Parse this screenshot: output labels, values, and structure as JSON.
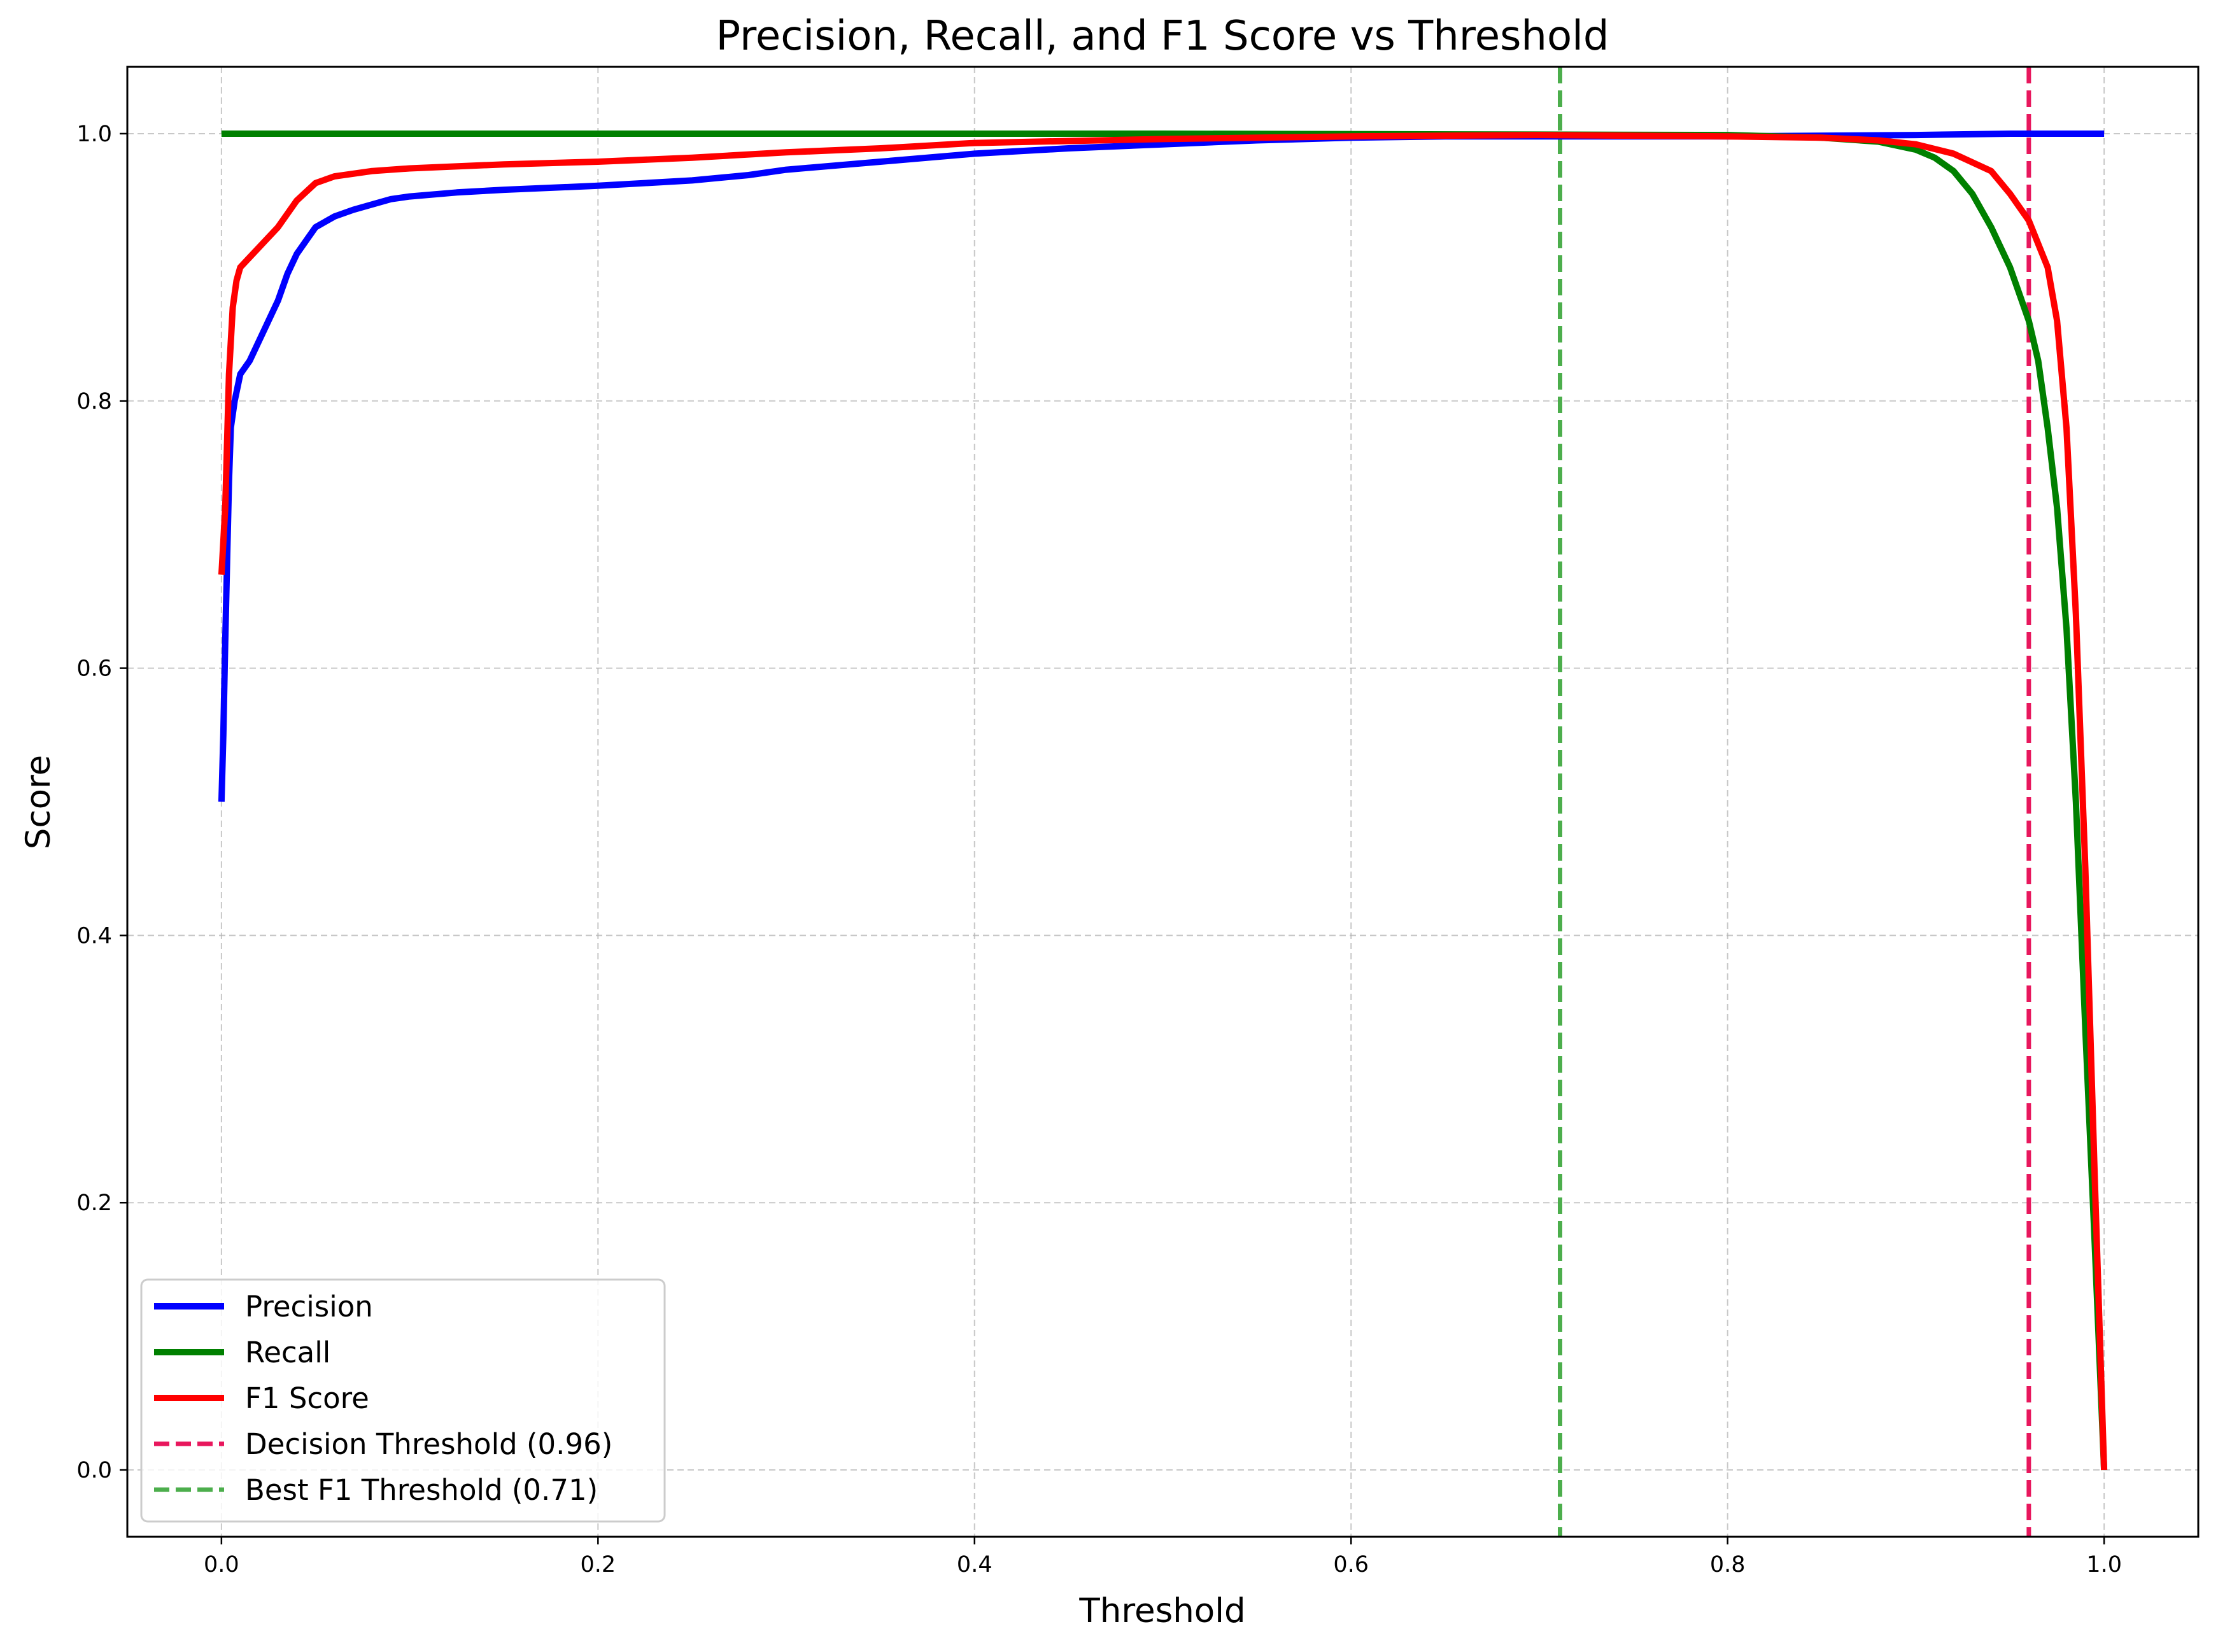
{
  "chart_data": {
    "type": "line",
    "title": "Precision, Recall, and F1 Score vs Threshold",
    "xlabel": "Threshold",
    "ylabel": "Score",
    "xlim": [
      -0.05,
      1.05
    ],
    "ylim": [
      -0.05,
      1.05
    ],
    "xticks": [
      "0.0",
      "0.2",
      "0.4",
      "0.6",
      "0.8",
      "1.0"
    ],
    "yticks": [
      "0.0",
      "0.2",
      "0.4",
      "0.6",
      "0.8",
      "1.0"
    ],
    "grid": true,
    "legend_position": "lower-left",
    "series": [
      {
        "name": "Precision",
        "color": "#0000ff",
        "style": "solid",
        "points": [
          [
            0.0,
            0.5
          ],
          [
            0.001,
            0.55
          ],
          [
            0.002,
            0.62
          ],
          [
            0.003,
            0.68
          ],
          [
            0.004,
            0.74
          ],
          [
            0.005,
            0.78
          ],
          [
            0.007,
            0.8
          ],
          [
            0.01,
            0.82
          ],
          [
            0.015,
            0.83
          ],
          [
            0.02,
            0.845
          ],
          [
            0.025,
            0.86
          ],
          [
            0.03,
            0.875
          ],
          [
            0.035,
            0.895
          ],
          [
            0.04,
            0.91
          ],
          [
            0.045,
            0.92
          ],
          [
            0.05,
            0.93
          ],
          [
            0.06,
            0.938
          ],
          [
            0.07,
            0.943
          ],
          [
            0.08,
            0.947
          ],
          [
            0.09,
            0.951
          ],
          [
            0.1,
            0.953
          ],
          [
            0.125,
            0.956
          ],
          [
            0.15,
            0.958
          ],
          [
            0.2,
            0.961
          ],
          [
            0.25,
            0.965
          ],
          [
            0.28,
            0.969
          ],
          [
            0.3,
            0.973
          ],
          [
            0.35,
            0.979
          ],
          [
            0.4,
            0.985
          ],
          [
            0.45,
            0.989
          ],
          [
            0.5,
            0.992
          ],
          [
            0.55,
            0.995
          ],
          [
            0.6,
            0.997
          ],
          [
            0.65,
            0.998
          ],
          [
            0.7,
            0.998
          ],
          [
            0.8,
            0.998
          ],
          [
            0.9,
            0.999
          ],
          [
            0.95,
            1.0
          ],
          [
            1.0,
            1.0
          ]
        ]
      },
      {
        "name": "Recall",
        "color": "#008000",
        "style": "solid",
        "points": [
          [
            0.0,
            1.0
          ],
          [
            0.5,
            1.0
          ],
          [
            0.8,
            0.999
          ],
          [
            0.85,
            0.997
          ],
          [
            0.88,
            0.994
          ],
          [
            0.9,
            0.988
          ],
          [
            0.91,
            0.982
          ],
          [
            0.92,
            0.972
          ],
          [
            0.93,
            0.955
          ],
          [
            0.94,
            0.93
          ],
          [
            0.95,
            0.9
          ],
          [
            0.96,
            0.86
          ],
          [
            0.965,
            0.83
          ],
          [
            0.97,
            0.78
          ],
          [
            0.975,
            0.72
          ],
          [
            0.98,
            0.63
          ],
          [
            0.985,
            0.5
          ],
          [
            0.99,
            0.33
          ],
          [
            0.995,
            0.17
          ],
          [
            1.0,
            0.0
          ]
        ]
      },
      {
        "name": "F1 Score",
        "color": "#ff0000",
        "style": "solid",
        "points": [
          [
            0.0,
            0.67
          ],
          [
            0.002,
            0.72
          ],
          [
            0.004,
            0.82
          ],
          [
            0.006,
            0.87
          ],
          [
            0.008,
            0.89
          ],
          [
            0.01,
            0.9
          ],
          [
            0.02,
            0.915
          ],
          [
            0.03,
            0.93
          ],
          [
            0.04,
            0.95
          ],
          [
            0.05,
            0.963
          ],
          [
            0.06,
            0.968
          ],
          [
            0.08,
            0.972
          ],
          [
            0.1,
            0.974
          ],
          [
            0.15,
            0.977
          ],
          [
            0.2,
            0.979
          ],
          [
            0.25,
            0.982
          ],
          [
            0.3,
            0.986
          ],
          [
            0.35,
            0.989
          ],
          [
            0.4,
            0.993
          ],
          [
            0.5,
            0.996
          ],
          [
            0.6,
            0.998
          ],
          [
            0.7,
            0.999
          ],
          [
            0.8,
            0.998
          ],
          [
            0.85,
            0.997
          ],
          [
            0.88,
            0.995
          ],
          [
            0.9,
            0.992
          ],
          [
            0.92,
            0.985
          ],
          [
            0.94,
            0.972
          ],
          [
            0.95,
            0.955
          ],
          [
            0.96,
            0.935
          ],
          [
            0.97,
            0.9
          ],
          [
            0.975,
            0.86
          ],
          [
            0.98,
            0.78
          ],
          [
            0.985,
            0.64
          ],
          [
            0.99,
            0.45
          ],
          [
            0.995,
            0.22
          ],
          [
            1.0,
            0.0
          ]
        ]
      }
    ],
    "vlines": [
      {
        "name": "Decision Threshold (0.96)",
        "x": 0.96,
        "color": "#e8175d",
        "style": "dashed"
      },
      {
        "name": "Best F1 Threshold (0.71)",
        "x": 0.711,
        "color": "#4cae4c",
        "style": "dashed"
      }
    ]
  }
}
